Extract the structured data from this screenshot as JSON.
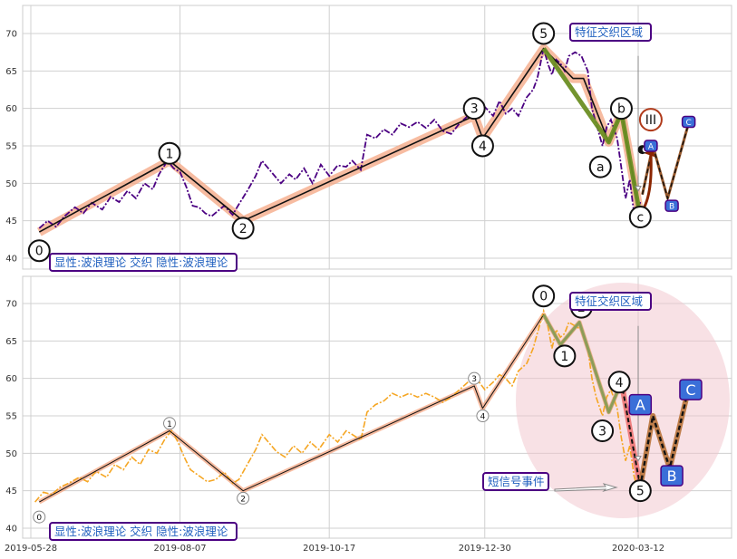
{
  "chart_data": [
    {
      "type": "line",
      "ylim": [
        38.5,
        74
      ],
      "yticks": [
        40,
        45,
        50,
        55,
        60,
        65,
        70
      ],
      "grid": true,
      "price": [
        [
          "2019-06-01",
          44.0
        ],
        [
          "2019-06-05",
          45.0
        ],
        [
          "2019-06-09",
          44.2
        ],
        [
          "2019-06-13",
          45.6
        ],
        [
          "2019-06-18",
          46.8
        ],
        [
          "2019-06-22",
          46.0
        ],
        [
          "2019-06-26",
          47.4
        ],
        [
          "2019-07-01",
          46.5
        ],
        [
          "2019-07-05",
          48.2
        ],
        [
          "2019-07-09",
          47.5
        ],
        [
          "2019-07-13",
          49.0
        ],
        [
          "2019-07-17",
          48.0
        ],
        [
          "2019-07-21",
          50.0
        ],
        [
          "2019-07-25",
          49.2
        ],
        [
          "2019-07-28",
          51.2
        ],
        [
          "2019-08-01",
          53.0
        ],
        [
          "2019-08-04",
          52.0
        ],
        [
          "2019-08-07",
          51.5
        ],
        [
          "2019-08-10",
          49.5
        ],
        [
          "2019-08-13",
          47.0
        ],
        [
          "2019-08-16",
          46.8
        ],
        [
          "2019-08-19",
          46.0
        ],
        [
          "2019-08-22",
          45.6
        ],
        [
          "2019-08-25",
          46.3
        ],
        [
          "2019-08-28",
          47.0
        ],
        [
          "2019-09-01",
          45.8
        ],
        [
          "2019-09-04",
          47.2
        ],
        [
          "2019-09-08",
          49.0
        ],
        [
          "2019-09-12",
          51.0
        ],
        [
          "2019-09-15",
          53.0
        ],
        [
          "2019-09-18",
          52.0
        ],
        [
          "2019-09-21",
          51.0
        ],
        [
          "2019-09-24",
          50.0
        ],
        [
          "2019-09-28",
          51.2
        ],
        [
          "2019-10-01",
          50.5
        ],
        [
          "2019-10-05",
          52.0
        ],
        [
          "2019-10-09",
          50.0
        ],
        [
          "2019-10-13",
          52.5
        ],
        [
          "2019-10-17",
          51.0
        ],
        [
          "2019-10-21",
          52.4
        ],
        [
          "2019-10-25",
          52.2
        ],
        [
          "2019-10-28",
          53.0
        ],
        [
          "2019-11-01",
          51.8
        ],
        [
          "2019-11-04",
          56.5
        ],
        [
          "2019-11-08",
          56.0
        ],
        [
          "2019-11-12",
          57.2
        ],
        [
          "2019-11-16",
          56.5
        ],
        [
          "2019-11-20",
          58.0
        ],
        [
          "2019-11-24",
          57.5
        ],
        [
          "2019-11-28",
          58.2
        ],
        [
          "2019-12-02",
          57.4
        ],
        [
          "2019-12-06",
          58.5
        ],
        [
          "2019-12-10",
          57.0
        ],
        [
          "2019-12-14",
          56.6
        ],
        [
          "2019-12-18",
          58.0
        ],
        [
          "2019-12-22",
          59.0
        ],
        [
          "2019-12-26",
          59.5
        ],
        [
          "2019-12-30",
          60.2
        ],
        [
          "2020-01-03",
          59.0
        ],
        [
          "2020-01-06",
          61.0
        ],
        [
          "2020-01-09",
          59.3
        ],
        [
          "2020-01-12",
          60.0
        ],
        [
          "2020-01-15",
          59.0
        ],
        [
          "2020-01-19",
          61.5
        ],
        [
          "2020-01-22",
          62.5
        ],
        [
          "2020-01-24",
          64.0
        ],
        [
          "2020-01-27",
          68.0
        ],
        [
          "2020-01-29",
          66.0
        ],
        [
          "2020-01-31",
          64.5
        ],
        [
          "2020-02-02",
          66.5
        ],
        [
          "2020-02-04",
          66.0
        ],
        [
          "2020-02-06",
          65.0
        ],
        [
          "2020-02-08",
          67.0
        ],
        [
          "2020-02-11",
          67.5
        ],
        [
          "2020-02-14",
          67.0
        ],
        [
          "2020-02-17",
          65.0
        ],
        [
          "2020-02-19",
          60.0
        ],
        [
          "2020-02-21",
          58.0
        ],
        [
          "2020-02-24",
          55.0
        ],
        [
          "2020-02-26",
          57.5
        ],
        [
          "2020-02-28",
          58.5
        ],
        [
          "2020-03-02",
          56.0
        ],
        [
          "2020-03-04",
          52.0
        ],
        [
          "2020-03-06",
          48.0
        ],
        [
          "2020-03-08",
          50.5
        ],
        [
          "2020-03-10",
          46.0
        ],
        [
          "2020-03-11",
          45.5
        ],
        [
          "2020-03-13",
          47.5
        ]
      ],
      "price_color": "#4b0082",
      "waves": {
        "pattern": [
          [
            "2019-06-01",
            43.5
          ],
          [
            "2019-08-02",
            53
          ],
          [
            "2019-09-06",
            45
          ],
          [
            "2019-12-25",
            59
          ],
          [
            "2019-12-29",
            56
          ],
          [
            "2020-01-27",
            68
          ],
          [
            "2020-02-10",
            64
          ],
          [
            "2020-02-15",
            64
          ],
          [
            "2020-02-27",
            55.5
          ],
          [
            "2020-03-04",
            59.5
          ],
          [
            "2020-03-13",
            45.5
          ]
        ],
        "highlight": [
          [
            "2020-01-27",
            68
          ],
          [
            "2020-02-27",
            55.5
          ],
          [
            "2020-03-04",
            59.5
          ],
          [
            "2020-03-13",
            45.5
          ]
        ],
        "highlight_color": "#6b8e23",
        "band_color": "#f4a582",
        "projection": [
          [
            "2020-03-14",
            48.5
          ],
          [
            "2020-03-19",
            55
          ],
          [
            "2020-03-26",
            48
          ],
          [
            "2020-04-05",
            58
          ]
        ],
        "projection_color": "#8b4513"
      },
      "circle_labels": [
        {
          "t": "0",
          "d": "2019-06-01",
          "v": 41.0
        },
        {
          "t": "1",
          "d": "2019-08-02",
          "v": 54.0
        },
        {
          "t": "2",
          "d": "2019-09-06",
          "v": 44.0
        },
        {
          "t": "3",
          "d": "2019-12-25",
          "v": 60.0
        },
        {
          "t": "4",
          "d": "2019-12-29",
          "v": 55.0
        },
        {
          "t": "5",
          "d": "2020-01-27",
          "v": 70.0
        },
        {
          "t": "a",
          "d": "2020-02-23",
          "v": 52.2
        },
        {
          "t": "b",
          "d": "2020-03-04",
          "v": 60.0
        },
        {
          "t": "c",
          "d": "2020-03-13",
          "v": 45.5
        },
        {
          "t": "III",
          "d": "2020-03-18",
          "v": 58.5
        }
      ],
      "box_labels": [
        {
          "t": "A",
          "d": "2020-03-18",
          "v": 55.0
        },
        {
          "t": "B",
          "d": "2020-03-28",
          "v": 47.0
        },
        {
          "t": "C",
          "d": "2020-04-05",
          "v": 58.2
        }
      ],
      "annotations": [
        "特征交织区域",
        "显性:波浪理论 交织 隐性:波浪理论"
      ]
    },
    {
      "type": "line",
      "ylim": [
        38.5,
        74
      ],
      "yticks": [
        40,
        45,
        50,
        55,
        60,
        65,
        70
      ],
      "xticks": [
        "2019-05-28",
        "2019-08-07",
        "2019-10-17",
        "2019-12-30",
        "2020-03-12"
      ],
      "grid": true,
      "price": [
        [
          "2019-05-30",
          43.5
        ],
        [
          "2019-06-03",
          44.8
        ],
        [
          "2019-06-07",
          44.5
        ],
        [
          "2019-06-11",
          45.5
        ],
        [
          "2019-06-15",
          46.0
        ],
        [
          "2019-06-20",
          46.8
        ],
        [
          "2019-06-24",
          46.2
        ],
        [
          "2019-06-28",
          47.6
        ],
        [
          "2019-07-03",
          46.8
        ],
        [
          "2019-07-07",
          48.5
        ],
        [
          "2019-07-11",
          47.8
        ],
        [
          "2019-07-15",
          49.5
        ],
        [
          "2019-07-19",
          48.5
        ],
        [
          "2019-07-23",
          50.5
        ],
        [
          "2019-07-27",
          50.0
        ],
        [
          "2019-07-31",
          52.0
        ],
        [
          "2019-08-03",
          53.0
        ],
        [
          "2019-08-06",
          51.5
        ],
        [
          "2019-08-09",
          49.5
        ],
        [
          "2019-08-12",
          47.8
        ],
        [
          "2019-08-16",
          47.0
        ],
        [
          "2019-08-20",
          46.2
        ],
        [
          "2019-08-24",
          46.5
        ],
        [
          "2019-08-28",
          47.5
        ],
        [
          "2019-09-01",
          46.0
        ],
        [
          "2019-09-04",
          46.5
        ],
        [
          "2019-09-08",
          48.5
        ],
        [
          "2019-09-12",
          50.5
        ],
        [
          "2019-09-15",
          52.5
        ],
        [
          "2019-09-18",
          51.5
        ],
        [
          "2019-09-22",
          50.2
        ],
        [
          "2019-09-26",
          49.5
        ],
        [
          "2019-09-30",
          51.0
        ],
        [
          "2019-10-04",
          50.0
        ],
        [
          "2019-10-08",
          51.5
        ],
        [
          "2019-10-12",
          50.5
        ],
        [
          "2019-10-17",
          52.5
        ],
        [
          "2019-10-21",
          51.5
        ],
        [
          "2019-10-25",
          53.0
        ],
        [
          "2019-10-28",
          52.5
        ],
        [
          "2019-11-01",
          51.8
        ],
        [
          "2019-11-04",
          55.5
        ],
        [
          "2019-11-08",
          56.5
        ],
        [
          "2019-11-12",
          57.0
        ],
        [
          "2019-11-16",
          58.0
        ],
        [
          "2019-11-20",
          57.5
        ],
        [
          "2019-11-24",
          58.0
        ],
        [
          "2019-11-28",
          57.5
        ],
        [
          "2019-12-02",
          58.0
        ],
        [
          "2019-12-06",
          57.5
        ],
        [
          "2019-12-10",
          56.8
        ],
        [
          "2019-12-14",
          57.5
        ],
        [
          "2019-12-18",
          58.5
        ],
        [
          "2019-12-22",
          59.5
        ],
        [
          "2019-12-26",
          60.0
        ],
        [
          "2019-12-30",
          58.5
        ],
        [
          "2020-01-03",
          59.5
        ],
        [
          "2020-01-06",
          60.5
        ],
        [
          "2020-01-09",
          60.0
        ],
        [
          "2020-01-12",
          59.0
        ],
        [
          "2020-01-15",
          61.0
        ],
        [
          "2020-01-19",
          62.0
        ],
        [
          "2020-01-22",
          64.0
        ],
        [
          "2020-01-24",
          66.0
        ],
        [
          "2020-01-27",
          69.0
        ],
        [
          "2020-01-29",
          67.0
        ],
        [
          "2020-01-31",
          64.0
        ],
        [
          "2020-02-02",
          66.5
        ],
        [
          "2020-02-04",
          65.5
        ],
        [
          "2020-02-06",
          66.0
        ],
        [
          "2020-02-08",
          67.5
        ],
        [
          "2020-02-11",
          67.0
        ],
        [
          "2020-02-14",
          66.5
        ],
        [
          "2020-02-17",
          64.0
        ],
        [
          "2020-02-19",
          60.0
        ],
        [
          "2020-02-21",
          57.5
        ],
        [
          "2020-02-24",
          55.0
        ],
        [
          "2020-02-26",
          57.5
        ],
        [
          "2020-02-28",
          58.5
        ],
        [
          "2020-03-02",
          56.0
        ],
        [
          "2020-03-04",
          52.0
        ],
        [
          "2020-03-06",
          49.0
        ],
        [
          "2020-03-08",
          51.0
        ],
        [
          "2020-03-10",
          47.0
        ],
        [
          "2020-03-11",
          46.0
        ],
        [
          "2020-03-13",
          47.5
        ]
      ],
      "price_color": "#f5a623",
      "waves": {
        "pattern": [
          [
            "2019-06-01",
            43.5
          ],
          [
            "2019-08-02",
            53
          ],
          [
            "2019-09-06",
            45
          ],
          [
            "2019-12-25",
            59
          ],
          [
            "2019-12-29",
            56
          ],
          [
            "2020-01-27",
            68.5
          ],
          [
            "2020-02-04",
            64.5
          ],
          [
            "2020-02-13",
            67.5
          ],
          [
            "2020-02-27",
            55.5
          ],
          [
            "2020-03-04",
            59.5
          ],
          [
            "2020-03-13",
            45.5
          ]
        ],
        "highlight": [
          [
            "2020-01-27",
            68.5
          ],
          [
            "2020-02-04",
            64.5
          ],
          [
            "2020-02-13",
            67.5
          ],
          [
            "2020-02-27",
            55.5
          ],
          [
            "2020-03-04",
            59.5
          ]
        ],
        "highlight_color": "#8fa05a",
        "band_color": "#f4a582",
        "red_segment": [
          [
            "2020-03-04",
            59.5
          ],
          [
            "2020-03-13",
            45.5
          ]
        ],
        "projection": [
          [
            "2020-03-13",
            45.5
          ],
          [
            "2020-03-19",
            55
          ],
          [
            "2020-03-27",
            48
          ],
          [
            "2020-04-04",
            57.5
          ]
        ],
        "projection_color": "#b8733a"
      },
      "circle_labels": [
        {
          "t": "0",
          "d": "2019-06-01",
          "v": 41.5,
          "small": true
        },
        {
          "t": "1",
          "d": "2019-08-02",
          "v": 54.0,
          "small": true
        },
        {
          "t": "2",
          "d": "2019-09-06",
          "v": 44.0,
          "small": true
        },
        {
          "t": "3",
          "d": "2019-12-25",
          "v": 60.0,
          "small": true
        },
        {
          "t": "4",
          "d": "2019-12-29",
          "v": 55.0,
          "small": true
        },
        {
          "t": "0",
          "d": "2020-01-27",
          "v": 71.0
        },
        {
          "t": "1",
          "d": "2020-02-06",
          "v": 63.0
        },
        {
          "t": "2",
          "d": "2020-02-14",
          "v": 69.5
        },
        {
          "t": "3",
          "d": "2020-02-24",
          "v": 53.0
        },
        {
          "t": "4",
          "d": "2020-03-03",
          "v": 59.5
        },
        {
          "t": "5",
          "d": "2020-03-13",
          "v": 45.0
        }
      ],
      "box_labels": [
        {
          "t": "A",
          "d": "2020-03-13",
          "v": 56.5
        },
        {
          "t": "B",
          "d": "2020-03-28",
          "v": 47.0
        },
        {
          "t": "C",
          "d": "2020-04-06",
          "v": 58.5
        }
      ],
      "annotations": [
        "特征交织区域",
        "短信号事件",
        "显性:波浪理论 交织 隐性:波浪理论"
      ]
    }
  ]
}
